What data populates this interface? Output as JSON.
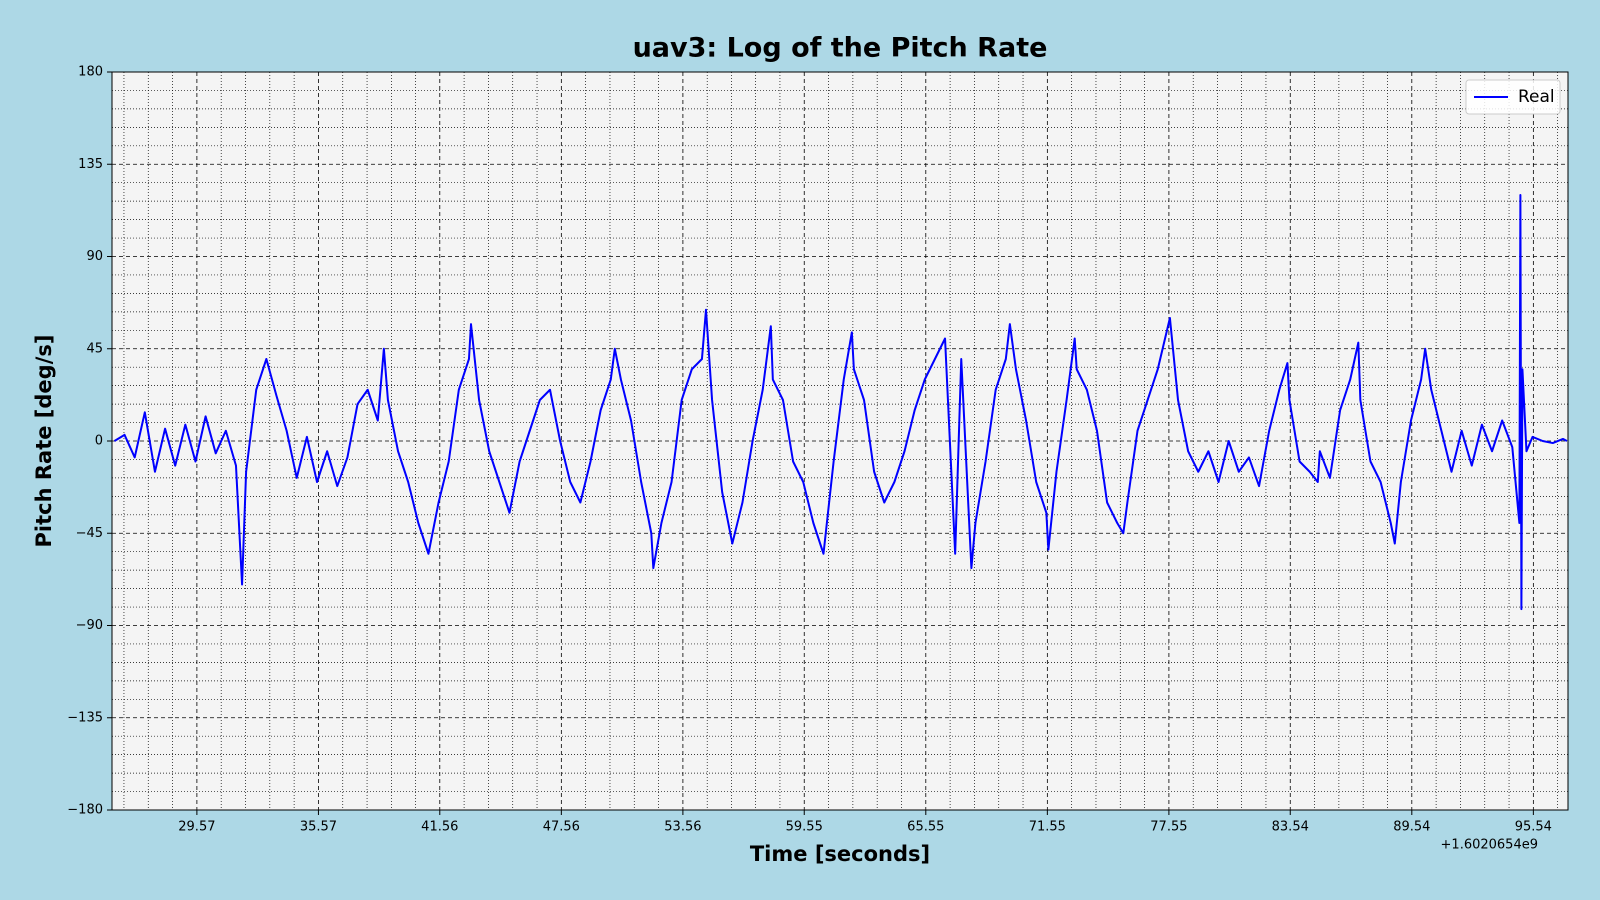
{
  "chart_data": {
    "type": "line",
    "title": "uav3: Log of the Pitch Rate",
    "xlabel": "Time [seconds]",
    "ylabel": "Pitch Rate [deg/s]",
    "x_offset_text": "+1.6020654e9",
    "x": [
      25.5,
      26.0,
      26.5,
      27.0,
      27.5,
      28.0,
      28.5,
      29.0,
      29.5,
      30.0,
      30.5,
      31.0,
      31.5,
      31.8,
      32.0,
      32.5,
      33.0,
      33.5,
      34.0,
      34.5,
      35.0,
      35.5,
      36.0,
      36.5,
      37.0,
      37.5,
      38.0,
      38.5,
      38.8,
      39.0,
      39.5,
      40.0,
      40.5,
      41.0,
      41.5,
      42.0,
      42.5,
      43.0,
      43.1,
      43.5,
      44.0,
      44.5,
      45.0,
      45.5,
      46.0,
      46.5,
      47.0,
      47.5,
      48.0,
      48.5,
      49.0,
      49.5,
      50.0,
      50.2,
      50.5,
      51.0,
      51.5,
      52.0,
      52.1,
      52.5,
      53.0,
      53.5,
      54.0,
      54.5,
      54.7,
      55.0,
      55.5,
      56.0,
      56.5,
      57.0,
      57.5,
      57.9,
      58.0,
      58.5,
      59.0,
      59.5,
      60.0,
      60.5,
      61.0,
      61.5,
      61.9,
      62.0,
      62.5,
      63.0,
      63.5,
      64.0,
      64.5,
      65.0,
      65.5,
      66.0,
      66.5,
      67.0,
      67.3,
      67.8,
      68.0,
      68.5,
      69.0,
      69.5,
      69.7,
      70.0,
      70.5,
      71.0,
      71.5,
      71.6,
      72.0,
      72.5,
      72.9,
      73.0,
      73.5,
      74.0,
      74.5,
      75.0,
      75.3,
      75.5,
      76.0,
      76.5,
      77.0,
      77.6,
      78.0,
      78.5,
      79.0,
      79.5,
      80.0,
      80.5,
      81.0,
      81.5,
      82.0,
      82.5,
      83.0,
      83.4,
      83.5,
      84.0,
      84.5,
      84.9,
      85.0,
      85.5,
      86.0,
      86.5,
      86.9,
      87.0,
      87.5,
      88.0,
      88.5,
      88.7,
      89.0,
      89.5,
      90.0,
      90.2,
      90.5,
      91.0,
      91.5,
      92.0,
      92.5,
      93.0,
      93.5,
      94.0,
      94.5,
      94.85,
      94.9,
      94.95,
      95.0,
      95.2,
      95.5,
      96.0,
      96.5,
      97.0,
      97.2
    ],
    "series": [
      {
        "name": "Real",
        "color": "#0000ff",
        "values": [
          0,
          3,
          -8,
          14,
          -15,
          6,
          -12,
          8,
          -10,
          12,
          -6,
          5,
          -12,
          -70,
          -15,
          25,
          40,
          22,
          5,
          -18,
          2,
          -20,
          -5,
          -22,
          -8,
          18,
          25,
          10,
          45,
          20,
          -5,
          -20,
          -40,
          -55,
          -30,
          -10,
          25,
          40,
          57,
          20,
          -5,
          -20,
          -35,
          -10,
          5,
          20,
          25,
          0,
          -20,
          -30,
          -10,
          15,
          30,
          45,
          30,
          10,
          -20,
          -45,
          -62,
          -40,
          -20,
          20,
          35,
          40,
          64,
          20,
          -25,
          -50,
          -30,
          0,
          25,
          56,
          30,
          20,
          -10,
          -20,
          -40,
          -55,
          -10,
          30,
          53,
          35,
          20,
          -15,
          -30,
          -20,
          -5,
          15,
          30,
          40,
          50,
          -55,
          40,
          -62,
          -40,
          -10,
          25,
          40,
          57,
          35,
          10,
          -20,
          -35,
          -53,
          -15,
          20,
          50,
          35,
          25,
          5,
          -30,
          -40,
          -45,
          -30,
          5,
          20,
          35,
          60,
          20,
          -5,
          -15,
          -5,
          -20,
          0,
          -15,
          -8,
          -22,
          5,
          25,
          38,
          20,
          -10,
          -15,
          -20,
          -5,
          -18,
          15,
          30,
          48,
          20,
          -10,
          -20,
          -40,
          -50,
          -20,
          10,
          30,
          45,
          25,
          5,
          -15,
          5,
          -12,
          8,
          -5,
          10,
          -3,
          -40,
          120,
          -82,
          35,
          -5,
          2,
          0,
          -1,
          1,
          0
        ]
      }
    ],
    "xlim": [
      25.38,
      97.25
    ],
    "ylim": [
      -180,
      180
    ],
    "xticks": [
      29.57,
      35.57,
      41.56,
      47.56,
      53.56,
      59.55,
      65.55,
      71.55,
      77.55,
      83.54,
      89.54,
      95.54
    ],
    "yticks": [
      {
        "value": -180,
        "label": "−180"
      },
      {
        "value": -135,
        "label": "−135"
      },
      {
        "value": -90,
        "label": "−90"
      },
      {
        "value": -45,
        "label": "−45"
      },
      0,
      45,
      90,
      135,
      180
    ],
    "xminorticks": [
      25.97,
      27.17,
      28.37,
      30.77,
      31.97,
      33.17,
      34.37,
      36.77,
      37.97,
      39.17,
      40.36,
      42.76,
      43.96,
      45.16,
      46.36,
      48.76,
      49.96,
      51.16,
      52.36,
      54.76,
      55.96,
      57.15,
      58.35,
      60.75,
      61.95,
      63.15,
      64.35,
      66.75,
      67.95,
      69.15,
      70.35,
      72.75,
      73.95,
      75.15,
      76.35,
      78.75,
      79.95,
      81.14,
      82.34,
      84.74,
      85.94,
      87.14,
      88.34,
      90.74,
      91.94,
      93.14,
      94.34,
      96.74
    ],
    "yminorticks": [
      -171,
      -162,
      -153,
      -144,
      -126,
      -117,
      -108,
      -99,
      -81,
      -72,
      -63,
      -54,
      -36,
      -27,
      -18,
      -9,
      9,
      18,
      27,
      36,
      54,
      63,
      72,
      81,
      99,
      108,
      117,
      126,
      144,
      153,
      162,
      171
    ],
    "grid": true,
    "legend": "upper right"
  }
}
